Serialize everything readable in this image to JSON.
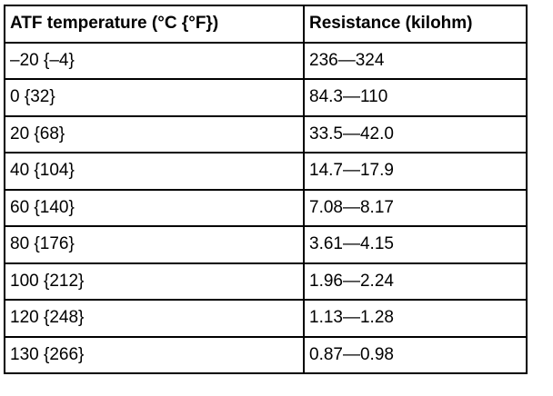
{
  "table": {
    "header": [
      "ATF temperature (°C {°F})",
      "Resistance (kilohm)"
    ],
    "rows": [
      [
        "–20 {–4}",
        "236—324"
      ],
      [
        "0 {32}",
        "84.3—110"
      ],
      [
        "20 {68}",
        "33.5—42.0"
      ],
      [
        "40 {104}",
        "14.7—17.9"
      ],
      [
        "60 {140}",
        "7.08—8.17"
      ],
      [
        "80 {176}",
        "3.61—4.15"
      ],
      [
        "100 {212}",
        "1.96—2.24"
      ],
      [
        "120 {248}",
        "1.13—1.28"
      ],
      [
        "130 {266}",
        "0.87—0.98"
      ]
    ]
  }
}
